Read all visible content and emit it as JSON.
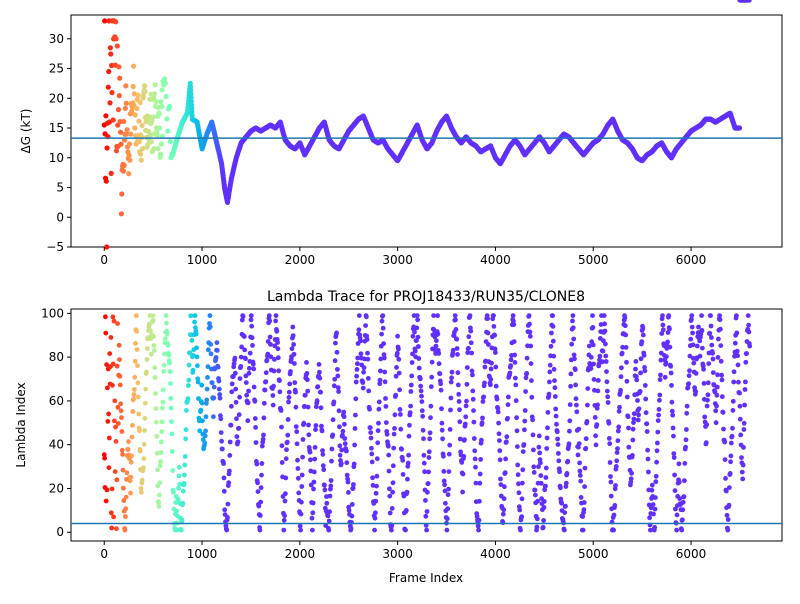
{
  "chart_data": [
    {
      "type": "scatter",
      "title": "",
      "xlabel": "",
      "ylabel": "ΔG (kT)",
      "xlim": [
        -340,
        6930
      ],
      "ylim": [
        -5,
        34
      ],
      "xticks": [
        0,
        1000,
        2000,
        3000,
        4000,
        5000,
        6000
      ],
      "yticks": [
        -5,
        0,
        5,
        10,
        15,
        20,
        25,
        30
      ],
      "hline": 13.3,
      "hline_color": "#1f77b4",
      "colormap": "rainbow (frame order, red at start to violet at end)",
      "points_x": [
        0,
        25,
        50,
        75,
        100,
        125,
        150,
        175,
        200,
        225,
        250,
        275,
        300,
        325,
        350,
        375,
        400,
        425,
        450,
        475,
        500,
        525,
        550,
        575,
        600,
        650,
        700,
        750,
        800,
        850,
        880,
        900,
        950,
        1000,
        1050,
        1100,
        1150,
        1200,
        1230,
        1260,
        1300,
        1350,
        1400,
        1450,
        1500,
        1550,
        1600,
        1650,
        1700,
        1750,
        1800,
        1850,
        1900,
        1950,
        2000,
        2050,
        2100,
        2150,
        2200,
        2250,
        2300,
        2350,
        2400,
        2450,
        2500,
        2550,
        2600,
        2650,
        2700,
        2750,
        2800,
        2850,
        2900,
        2950,
        3000,
        3050,
        3100,
        3150,
        3200,
        3250,
        3300,
        3350,
        3400,
        3450,
        3500,
        3550,
        3600,
        3650,
        3700,
        3750,
        3800,
        3850,
        3900,
        3950,
        4000,
        4050,
        4100,
        4150,
        4200,
        4250,
        4300,
        4350,
        4400,
        4450,
        4500,
        4550,
        4600,
        4650,
        4700,
        4750,
        4800,
        4850,
        4900,
        4950,
        5000,
        5050,
        5100,
        5150,
        5200,
        5250,
        5300,
        5350,
        5400,
        5450,
        5500,
        5550,
        5600,
        5650,
        5700,
        5750,
        5800,
        5850,
        5900,
        5950,
        6000,
        6050,
        6100,
        6150,
        6200,
        6250,
        6300,
        6350,
        6400,
        6450,
        6500,
        6550,
        6600
      ],
      "points_y": [
        30.5,
        0.0,
        24.5,
        20.0,
        31.5,
        15.0,
        26.0,
        5.0,
        12.0,
        19.0,
        9.0,
        15.5,
        21.0,
        14.0,
        18.0,
        12.5,
        16.5,
        19.5,
        14.0,
        17.0,
        15.5,
        18.0,
        16.0,
        14.5,
        19.0,
        17.0,
        10.5,
        13.5,
        16.0,
        17.5,
        22.5,
        16.5,
        16.0,
        11.5,
        14.0,
        16.0,
        12.5,
        9.0,
        5.0,
        2.5,
        6.5,
        10.0,
        12.5,
        13.5,
        14.5,
        15.0,
        14.5,
        15.0,
        15.5,
        15.0,
        16.0,
        13.0,
        12.0,
        11.5,
        12.5,
        10.5,
        12.0,
        13.5,
        15.0,
        16.0,
        13.0,
        12.0,
        11.5,
        13.0,
        14.5,
        15.5,
        16.5,
        17.0,
        15.0,
        13.0,
        12.5,
        13.0,
        11.5,
        10.5,
        9.5,
        11.0,
        12.5,
        14.0,
        15.5,
        13.0,
        11.5,
        12.5,
        14.5,
        16.0,
        17.0,
        15.0,
        13.5,
        12.5,
        13.5,
        12.5,
        12.0,
        11.0,
        11.5,
        12.0,
        10.0,
        9.0,
        10.5,
        12.0,
        13.0,
        12.0,
        10.5,
        11.5,
        12.5,
        13.5,
        12.5,
        11.0,
        12.0,
        13.0,
        14.0,
        13.5,
        12.5,
        11.5,
        10.5,
        11.5,
        12.5,
        13.0,
        14.0,
        15.5,
        16.5,
        14.5,
        13.0,
        12.5,
        11.5,
        10.0,
        9.5,
        10.5,
        11.0,
        12.0,
        12.5,
        11.0,
        10.0,
        11.5,
        12.5,
        13.5,
        14.5,
        15.0,
        15.5,
        16.5,
        16.5,
        16.0,
        16.5,
        17.0,
        17.5,
        15.0,
        15.0
      ]
    },
    {
      "type": "scatter",
      "title": "Lambda Trace for PROJ18433/RUN35/CLONE8",
      "xlabel": "Frame Index",
      "ylabel": "Lambda Index",
      "xlim": [
        -340,
        6930
      ],
      "ylim": [
        -4,
        102
      ],
      "xticks": [
        0,
        1000,
        2000,
        3000,
        4000,
        5000,
        6000
      ],
      "yticks": [
        0,
        20,
        40,
        60,
        80,
        100
      ],
      "hline": 4,
      "hline_color": "#1f77b4",
      "colormap": "rainbow (frame order, red at start to violet at end)",
      "frames_max": 6600,
      "lambda_range": [
        1,
        99
      ]
    }
  ]
}
